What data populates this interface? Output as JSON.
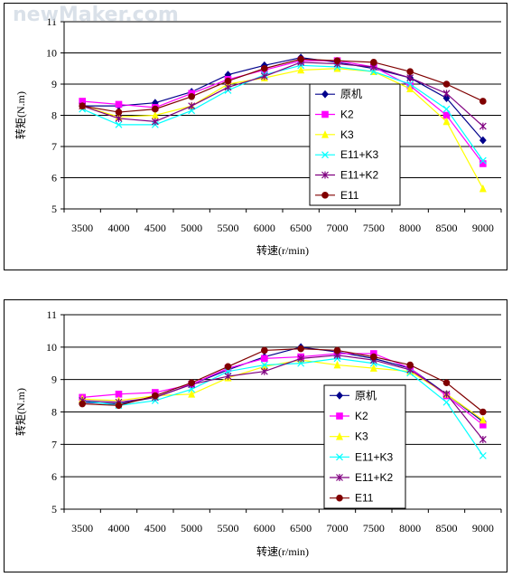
{
  "watermark": "newMaker.com",
  "chart_data": [
    {
      "type": "line",
      "xlabel": "转速(r/min)",
      "ylabel": "转矩(N.m)",
      "ylim": [
        5,
        11
      ],
      "yticks": [
        5,
        6,
        7,
        8,
        9,
        10,
        11
      ],
      "categories": [
        "3500",
        "4000",
        "4500",
        "5000",
        "5500",
        "6000",
        "6500",
        "7000",
        "7500",
        "8000",
        "8500",
        "9000"
      ],
      "grid": "horizontal",
      "legend_position": "right",
      "series": [
        {
          "name": "原机",
          "color": "#00008b",
          "marker": "diamond",
          "values": [
            8.3,
            8.3,
            8.4,
            8.75,
            9.3,
            9.6,
            9.85,
            9.7,
            9.5,
            9.2,
            8.55,
            7.2
          ]
        },
        {
          "name": "K2",
          "color": "#ff00ff",
          "marker": "square",
          "values": [
            8.45,
            8.35,
            8.25,
            8.7,
            9.15,
            9.45,
            9.75,
            9.75,
            9.55,
            8.95,
            8.0,
            6.45
          ]
        },
        {
          "name": "K3",
          "color": "#ffff00",
          "marker": "triangle",
          "values": [
            8.3,
            7.95,
            8.0,
            8.3,
            9.0,
            9.2,
            9.45,
            9.5,
            9.4,
            8.85,
            7.8,
            5.65
          ]
        },
        {
          "name": "E11+K3",
          "color": "#00ffff",
          "marker": "x",
          "values": [
            8.2,
            7.7,
            7.7,
            8.15,
            8.8,
            9.3,
            9.6,
            9.55,
            9.4,
            9.0,
            8.2,
            6.55
          ]
        },
        {
          "name": "E11+K2",
          "color": "#800080",
          "marker": "star",
          "values": [
            8.3,
            7.9,
            7.8,
            8.3,
            8.9,
            9.25,
            9.7,
            9.65,
            9.55,
            9.2,
            8.7,
            7.65
          ]
        },
        {
          "name": "E11",
          "color": "#800000",
          "marker": "circle",
          "values": [
            8.3,
            8.1,
            8.2,
            8.6,
            9.1,
            9.5,
            9.8,
            9.75,
            9.7,
            9.4,
            9.0,
            8.45
          ]
        }
      ]
    },
    {
      "type": "line",
      "xlabel": "转速(r/min)",
      "ylabel": "转矩(N.m)",
      "ylim": [
        5,
        11
      ],
      "yticks": [
        5,
        6,
        7,
        8,
        9,
        10,
        11
      ],
      "categories": [
        "3500",
        "4000",
        "4500",
        "5000",
        "5500",
        "6000",
        "6500",
        "7000",
        "7500",
        "8000",
        "8500",
        "9000"
      ],
      "grid": "horizontal",
      "legend_position": "right",
      "series": [
        {
          "name": "原机",
          "color": "#00008b",
          "marker": "diamond",
          "values": [
            8.3,
            8.25,
            8.45,
            8.85,
            9.3,
            9.7,
            10.0,
            9.85,
            9.65,
            9.35,
            8.55,
            7.7
          ]
        },
        {
          "name": "K2",
          "color": "#ff00ff",
          "marker": "square",
          "values": [
            8.45,
            8.55,
            8.6,
            8.85,
            9.35,
            9.65,
            9.7,
            9.8,
            9.8,
            9.35,
            8.5,
            7.6
          ]
        },
        {
          "name": "K3",
          "color": "#ffff00",
          "marker": "triangle",
          "values": [
            8.4,
            8.35,
            8.5,
            8.55,
            9.05,
            9.4,
            9.6,
            9.45,
            9.35,
            9.25,
            8.55,
            7.75
          ]
        },
        {
          "name": "E11+K3",
          "color": "#00ffff",
          "marker": "x",
          "values": [
            8.35,
            8.2,
            8.35,
            8.7,
            9.25,
            9.45,
            9.5,
            9.65,
            9.5,
            9.2,
            8.3,
            6.65
          ]
        },
        {
          "name": "E11+K2",
          "color": "#800080",
          "marker": "star",
          "values": [
            8.35,
            8.3,
            8.45,
            8.85,
            9.1,
            9.25,
            9.65,
            9.75,
            9.6,
            9.3,
            8.55,
            7.15
          ]
        },
        {
          "name": "E11",
          "color": "#800000",
          "marker": "circle",
          "values": [
            8.25,
            8.2,
            8.5,
            8.9,
            9.4,
            9.9,
            9.95,
            9.9,
            9.7,
            9.45,
            8.9,
            8.0
          ]
        }
      ]
    }
  ]
}
